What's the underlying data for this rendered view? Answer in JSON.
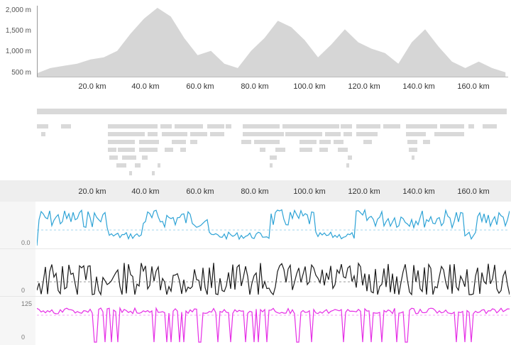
{
  "elevation_chart": {
    "y_ticks": [
      "2,000 m",
      "1,500 m",
      "1,000 m",
      "500 m"
    ],
    "x_ticks": [
      "20.0 km",
      "40.0 km",
      "60.0 km",
      "80.0 km",
      "100.0 km",
      "120.0 km",
      "140.0 km",
      "160.0 km"
    ]
  },
  "segments_ruler": {
    "x_ticks": [
      "20.0 km",
      "40.0 km",
      "60.0 km",
      "80.0 km",
      "100.0 km",
      "120.0 km",
      "140.0 km",
      "160.0 km"
    ]
  },
  "streams": [
    {
      "name": "stream-blue",
      "color": "#2ea3d6",
      "label_top": "",
      "label_bottom": "0.0"
    },
    {
      "name": "stream-black",
      "color": "#1a1a1a",
      "label_top": "",
      "label_bottom": "0"
    },
    {
      "name": "stream-magenta",
      "color": "#e62ee6",
      "label_top": "125",
      "label_bottom": "0"
    }
  ],
  "colors": {
    "elevation_fill": "#d6d6d6",
    "segment_bar": "#d9d9d9",
    "ruler_bg": "#eeeeee"
  },
  "chart_data": {
    "type": "area",
    "xlabel": "",
    "ylabel": "",
    "x": [
      0,
      5,
      10,
      15,
      20,
      25,
      30,
      35,
      40,
      45,
      50,
      55,
      60,
      65,
      70,
      75,
      80,
      85,
      90,
      95,
      100,
      105,
      110,
      115,
      120,
      125,
      130,
      135,
      140,
      145,
      150,
      155,
      160,
      165,
      170,
      175
    ],
    "values": [
      480,
      600,
      650,
      700,
      800,
      850,
      1000,
      1400,
      1750,
      2000,
      1800,
      1300,
      900,
      1000,
      700,
      600,
      1000,
      1300,
      1700,
      1550,
      1250,
      850,
      1150,
      1500,
      1200,
      1050,
      950,
      700,
      1200,
      1500,
      1100,
      750,
      600,
      750,
      600,
      500
    ],
    "xlim": [
      0,
      176
    ],
    "ylim": [
      400,
      2050
    ],
    "grid": false
  }
}
